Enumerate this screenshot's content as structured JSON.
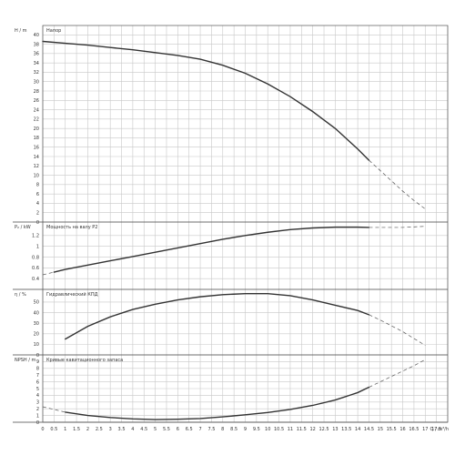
{
  "chart_data": {
    "type": "line",
    "grid": true,
    "x_axis": {
      "label": "Q / m³/h",
      "xlim": [
        0,
        18
      ],
      "ticks": [
        "0",
        "0.5",
        "1",
        "1.5",
        "2",
        "2.5",
        "3",
        "3.5",
        "4",
        "4.5",
        "5",
        "5.5",
        "6",
        "6.5",
        "7",
        "7.5",
        "8",
        "8.5",
        "9",
        "9.5",
        "10",
        "10.5",
        "11",
        "11.5",
        "12",
        "12.5",
        "13",
        "13.5",
        "14",
        "14.5",
        "15",
        "15.5",
        "16",
        "16.5",
        "17",
        "17.5"
      ]
    },
    "panels": [
      {
        "id": "head",
        "title": "Напор",
        "ylabel": "H / m",
        "ylim": [
          0,
          42
        ],
        "yticks": [
          "0",
          "2",
          "4",
          "6",
          "8",
          "10",
          "12",
          "14",
          "16",
          "18",
          "20",
          "22",
          "24",
          "26",
          "28",
          "30",
          "32",
          "34",
          "36",
          "38",
          "40"
        ],
        "solid": {
          "x": [
            0,
            1,
            2,
            3,
            4,
            5,
            6,
            7,
            8,
            9,
            10,
            11,
            12,
            13,
            14,
            14.5
          ],
          "y": [
            38.6,
            38.2,
            37.8,
            37.3,
            36.8,
            36.2,
            35.6,
            34.8,
            33.5,
            31.8,
            29.5,
            26.8,
            23.6,
            20.0,
            15.6,
            13.2
          ]
        },
        "dashed": {
          "x": [
            14.5,
            15,
            15.5,
            16,
            16.5,
            17
          ],
          "y": [
            13.2,
            11.0,
            8.8,
            6.6,
            4.6,
            2.8
          ]
        }
      },
      {
        "id": "power",
        "title": "Мощность на валу P2",
        "ylabel": "P₂ / kW",
        "ylim": [
          0.2,
          1.45
        ],
        "yticks": [
          "0.4",
          "0.6",
          "0.8",
          "1",
          "1.2"
        ],
        "solid": {
          "x": [
            0.5,
            1,
            2,
            3,
            4,
            5,
            6,
            7,
            8,
            9,
            10,
            11,
            12,
            13,
            14,
            14.5
          ],
          "y": [
            0.52,
            0.57,
            0.65,
            0.73,
            0.81,
            0.89,
            0.97,
            1.05,
            1.13,
            1.2,
            1.26,
            1.31,
            1.34,
            1.355,
            1.355,
            1.35
          ]
        },
        "dashed": {
          "x": [
            0,
            0.5
          ],
          "y": [
            0.47,
            0.52
          ]
        },
        "dashed2": {
          "x": [
            14.5,
            15,
            16,
            17
          ],
          "y": [
            1.35,
            1.35,
            1.35,
            1.37
          ]
        }
      },
      {
        "id": "eff",
        "title": "Гидравлический КПД",
        "ylabel": "η / %",
        "ylim": [
          0,
          62
        ],
        "yticks": [
          "0",
          "10",
          "20",
          "30",
          "40",
          "50"
        ],
        "solid": {
          "x": [
            1,
            2,
            3,
            4,
            5,
            6,
            7,
            8,
            9,
            10,
            11,
            12,
            13,
            14,
            14.5
          ],
          "y": [
            15,
            27,
            36,
            43,
            48,
            52,
            55,
            57,
            58,
            58,
            56,
            52,
            47,
            42,
            38
          ]
        },
        "dashed": {
          "x": [
            14.5,
            15,
            16,
            17
          ],
          "y": [
            38,
            33,
            22,
            9
          ]
        }
      },
      {
        "id": "npsh",
        "title": "Кривые кавитационного запаса",
        "ylabel": "NPSH / m",
        "ylim": [
          0,
          10
        ],
        "yticks": [
          "0",
          "1",
          "2",
          "3",
          "4",
          "5",
          "6",
          "7",
          "8",
          "9"
        ],
        "solid": {
          "x": [
            1,
            2,
            3,
            4,
            5,
            6,
            7,
            8,
            9,
            10,
            11,
            12,
            13,
            14,
            14.5
          ],
          "y": [
            1.5,
            1.0,
            0.7,
            0.5,
            0.4,
            0.45,
            0.55,
            0.8,
            1.1,
            1.45,
            1.9,
            2.5,
            3.3,
            4.4,
            5.2
          ]
        },
        "dashed": {
          "x": [
            0,
            0.5,
            1
          ],
          "y": [
            2.3,
            1.9,
            1.5
          ]
        },
        "dashed2": {
          "x": [
            14.5,
            15,
            15.5,
            16,
            16.5,
            17
          ],
          "y": [
            5.2,
            6.0,
            6.8,
            7.6,
            8.4,
            9.3
          ]
        }
      }
    ]
  }
}
